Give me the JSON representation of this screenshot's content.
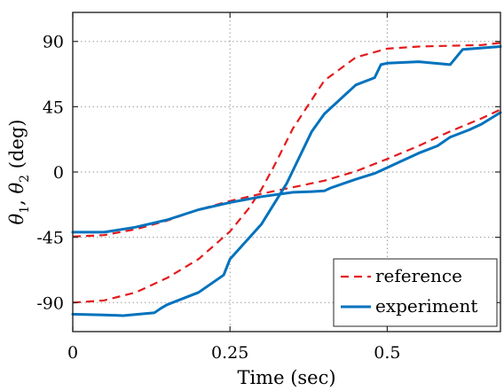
{
  "chart_data": {
    "type": "line",
    "xlabel": "Time (sec)",
    "ylabel": "θ₁, θ₂ (deg)",
    "ylabel_parts": {
      "theta": "θ",
      "sub1": "1",
      "sep": ", ",
      "sub2": "2",
      "unit": " (deg)"
    },
    "xlim": [
      0,
      0.68
    ],
    "ylim": [
      -110,
      110
    ],
    "xticks": [
      0,
      0.25,
      0.5
    ],
    "xtick_labels": [
      "0",
      "0.25",
      "0.5"
    ],
    "yticks": [
      90,
      45,
      0,
      -45,
      -90
    ],
    "ytick_labels": [
      "90",
      "45",
      "0",
      "-45",
      "-90"
    ],
    "grid": true,
    "legend_position": "bottom-right",
    "series": [
      {
        "name": "reference",
        "color": "#e41a1c",
        "style": "dashed",
        "x": [
          0,
          0.05,
          0.1,
          0.15,
          0.2,
          0.25,
          0.3,
          0.35,
          0.4,
          0.45,
          0.5,
          0.55,
          0.6,
          0.65,
          0.68
        ],
        "values": [
          -44.5,
          -43.5,
          -39.5,
          -33.5,
          -26,
          -20,
          -15,
          -10.5,
          -6,
          0.5,
          9,
          18,
          28,
          37,
          43
        ]
      },
      {
        "name": "reference",
        "color": "#e41a1c",
        "style": "dashed",
        "x": [
          0,
          0.05,
          0.1,
          0.15,
          0.2,
          0.25,
          0.28,
          0.3,
          0.32,
          0.35,
          0.4,
          0.45,
          0.5,
          0.55,
          0.6,
          0.65,
          0.68
        ],
        "values": [
          -90,
          -88.5,
          -83,
          -73,
          -60,
          -41,
          -25,
          -12,
          4,
          30,
          63,
          79,
          85,
          86.5,
          87,
          87.5,
          89
        ]
      },
      {
        "name": "experiment",
        "color": "#0072bd",
        "style": "solid",
        "x": [
          0,
          0.05,
          0.1,
          0.15,
          0.2,
          0.25,
          0.3,
          0.35,
          0.38,
          0.4,
          0.41,
          0.43,
          0.45,
          0.48,
          0.5,
          0.52,
          0.55,
          0.58,
          0.6,
          0.63,
          0.65,
          0.68
        ],
        "values": [
          -41.5,
          -41.5,
          -38,
          -33,
          -26,
          -21,
          -17,
          -14,
          -13.5,
          -13,
          -11,
          -8,
          -5,
          -1,
          3,
          7,
          13,
          18,
          24,
          29,
          33,
          41
        ]
      },
      {
        "name": "experiment",
        "color": "#0072bd",
        "style": "solid",
        "x": [
          0,
          0.05,
          0.08,
          0.13,
          0.14,
          0.15,
          0.2,
          0.24,
          0.25,
          0.3,
          0.34,
          0.36,
          0.38,
          0.4,
          0.45,
          0.48,
          0.49,
          0.5,
          0.55,
          0.6,
          0.62,
          0.65,
          0.68
        ],
        "values": [
          -98,
          -98.5,
          -99,
          -97,
          -94,
          -91.5,
          -83,
          -71,
          -60,
          -36,
          -8,
          10,
          28,
          40,
          60,
          65,
          74,
          75,
          76,
          74,
          84.5,
          85.5,
          86.5
        ]
      }
    ]
  }
}
